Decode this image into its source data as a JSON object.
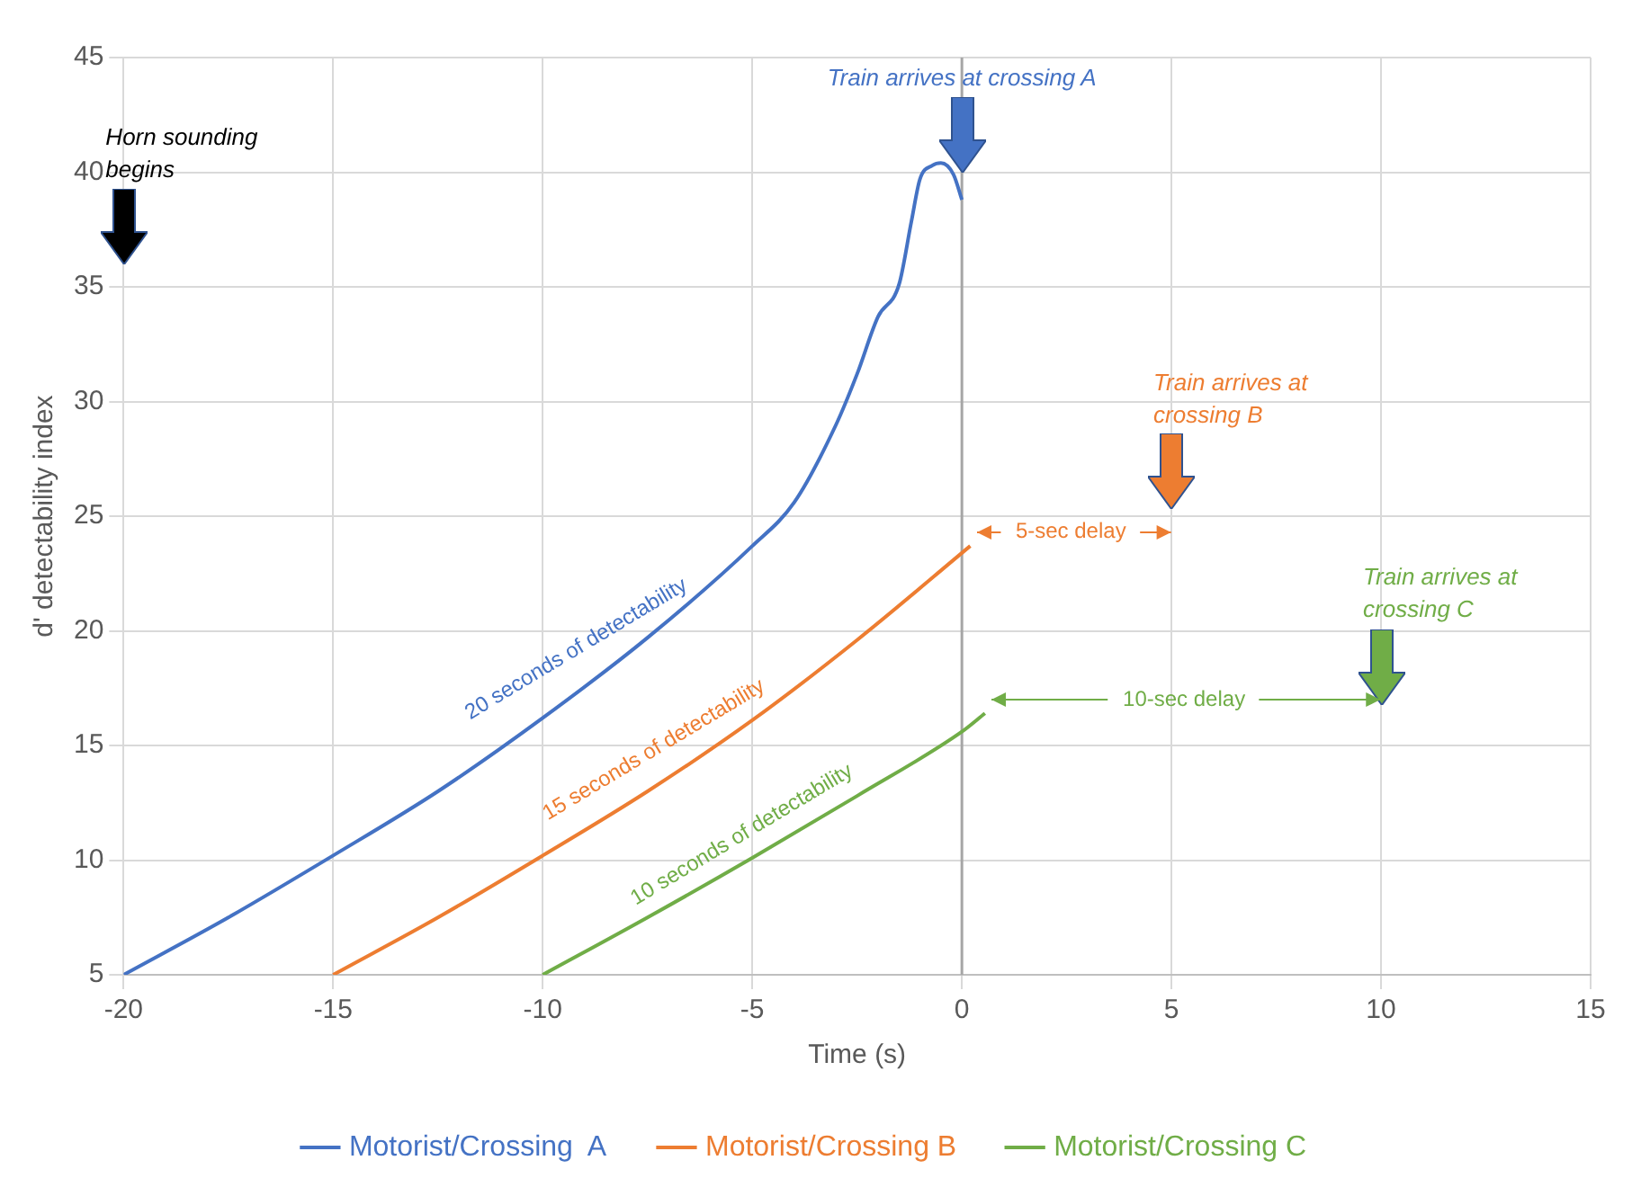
{
  "chart_data": {
    "type": "line",
    "xlabel": "Time (s)",
    "ylabel": "d' detectability index",
    "xlim": [
      -20,
      15
    ],
    "xticks": [
      -20,
      -15,
      -10,
      -5,
      0,
      5,
      10,
      15
    ],
    "ylim": [
      5,
      45
    ],
    "yticks": [
      5,
      10,
      15,
      20,
      25,
      30,
      35,
      40,
      45
    ],
    "grid": true,
    "legend": "bottom",
    "marker": "none",
    "line_style": "solid",
    "ref_lines": [
      {
        "axis": "x",
        "value": 0,
        "color": "#a6a6a6"
      }
    ],
    "series": [
      {
        "name": "Motorist/Crossing  A",
        "color": "#4472c4",
        "x": [
          -20,
          -17.5,
          -15,
          -12.5,
          -10,
          -7.5,
          -5,
          -4,
          -3,
          -2.5,
          -2,
          -1.5,
          -1.2,
          -1,
          -0.7,
          -0.5,
          -0.2,
          0
        ],
        "values": [
          5,
          7.5,
          10.2,
          13,
          16.2,
          19.7,
          23.7,
          25.6,
          29,
          31.2,
          33.7,
          35.1,
          37.9,
          39.7,
          40.3,
          40.4,
          39.9,
          38.8
        ]
      },
      {
        "name": "Motorist/Crossing B",
        "color": "#ed7d31",
        "x": [
          -15,
          -12.5,
          -10,
          -7.5,
          -5,
          -2.5,
          0.2
        ],
        "values": [
          5,
          7.5,
          10.2,
          13,
          16.1,
          19.6,
          23.7
        ]
      },
      {
        "name": "Motorist/Crossing C",
        "color": "#70ad47",
        "x": [
          -10,
          -7.5,
          -5,
          -2.5,
          0,
          0.55
        ],
        "values": [
          5,
          7.5,
          10.1,
          12.8,
          15.6,
          16.4
        ]
      }
    ],
    "annotations": [
      "Horn sounding begins",
      "Train arrives at crossing A",
      "Train arrives at crossing B",
      "Train arrives at crossing C",
      "5-sec delay",
      "10-sec delay",
      "20 seconds of detectability",
      "15 seconds of detectability",
      "10 seconds of detectability"
    ]
  }
}
